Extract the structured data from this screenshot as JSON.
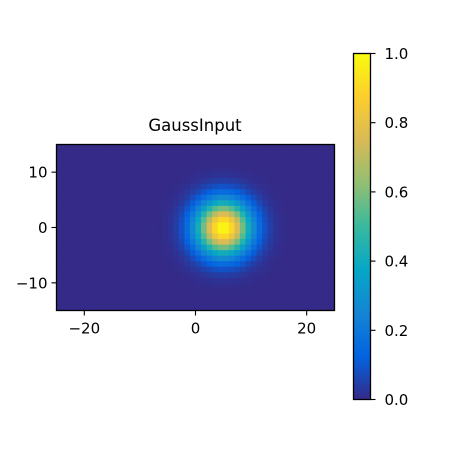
{
  "chart_data": {
    "type": "heatmap",
    "title": "GaussInput",
    "xlabel": "",
    "ylabel": "",
    "xlim": [
      -25,
      25
    ],
    "ylim": [
      -15,
      15
    ],
    "x_ticks": [
      -20,
      0,
      20
    ],
    "y_ticks": [
      10,
      0,
      -10
    ],
    "grid_resolution": 1,
    "gaussian": {
      "center_x": 5,
      "center_y": 0,
      "sigma": 3.4,
      "amplitude": 1.0
    },
    "colormap": "parula",
    "colormap_stops": [
      "#352a87",
      "#0363e1",
      "#1485d4",
      "#06a7c6",
      "#38b99e",
      "#92bf73",
      "#d9ba56",
      "#fcce2e",
      "#f9fb0e"
    ],
    "colorbar": {
      "range": [
        0.0,
        1.0
      ],
      "ticks": [
        "0.0",
        "0.2",
        "0.4",
        "0.6",
        "0.8",
        "1.0"
      ]
    },
    "grid": false
  }
}
